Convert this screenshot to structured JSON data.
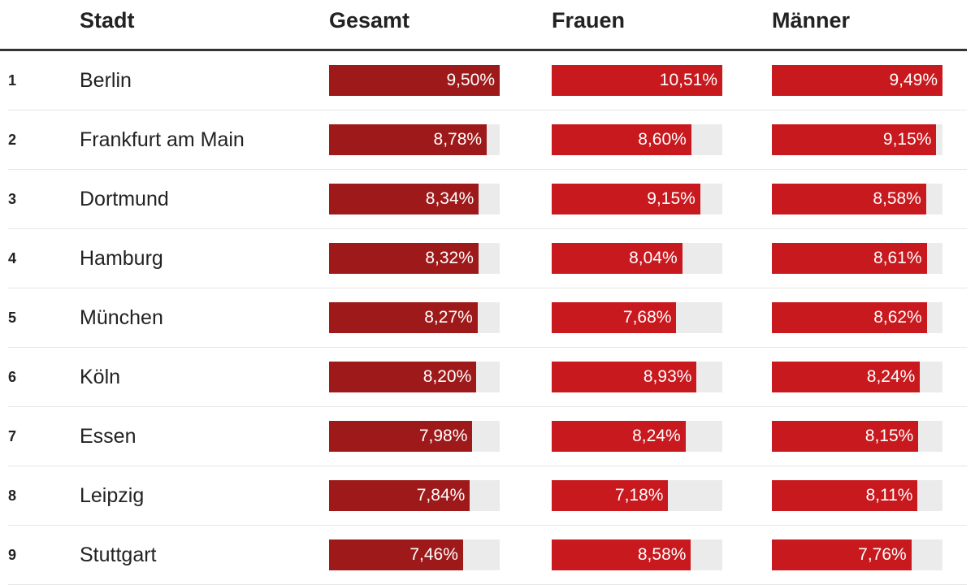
{
  "columns": {
    "stadt": "Stadt",
    "gesamt": "Gesamt",
    "frauen": "Frauen",
    "maenner": "Männer"
  },
  "colors": {
    "gesamt": "#9e1a1a",
    "frauen": "#c8191e",
    "maenner": "#c8191e",
    "track": "#ebebeb"
  },
  "chart_data": {
    "type": "table",
    "columns": [
      "Stadt",
      "Gesamt",
      "Frauen",
      "Männer"
    ],
    "rows": [
      {
        "rank": "1",
        "city": "Berlin",
        "gesamt": 9.5,
        "frauen": 10.51,
        "maenner": 9.49,
        "gesamt_label": "9,50%",
        "frauen_label": "10,51%",
        "maenner_label": "9,49%"
      },
      {
        "rank": "2",
        "city": "Frankfurt am Main",
        "gesamt": 8.78,
        "frauen": 8.6,
        "maenner": 9.15,
        "gesamt_label": "8,78%",
        "frauen_label": "8,60%",
        "maenner_label": "9,15%"
      },
      {
        "rank": "3",
        "city": "Dortmund",
        "gesamt": 8.34,
        "frauen": 9.15,
        "maenner": 8.58,
        "gesamt_label": "8,34%",
        "frauen_label": "9,15%",
        "maenner_label": "8,58%"
      },
      {
        "rank": "4",
        "city": "Hamburg",
        "gesamt": 8.32,
        "frauen": 8.04,
        "maenner": 8.61,
        "gesamt_label": "8,32%",
        "frauen_label": "8,04%",
        "maenner_label": "8,61%"
      },
      {
        "rank": "5",
        "city": "München",
        "gesamt": 8.27,
        "frauen": 7.68,
        "maenner": 8.62,
        "gesamt_label": "8,27%",
        "frauen_label": "7,68%",
        "maenner_label": "8,62%"
      },
      {
        "rank": "6",
        "city": "Köln",
        "gesamt": 8.2,
        "frauen": 8.93,
        "maenner": 8.24,
        "gesamt_label": "8,20%",
        "frauen_label": "8,93%",
        "maenner_label": "8,24%"
      },
      {
        "rank": "7",
        "city": "Essen",
        "gesamt": 7.98,
        "frauen": 8.24,
        "maenner": 8.15,
        "gesamt_label": "7,98%",
        "frauen_label": "8,24%",
        "maenner_label": "8,15%"
      },
      {
        "rank": "8",
        "city": "Leipzig",
        "gesamt": 7.84,
        "frauen": 7.18,
        "maenner": 8.11,
        "gesamt_label": "7,84%",
        "frauen_label": "7,18%",
        "maenner_label": "8,11%"
      },
      {
        "rank": "9",
        "city": "Stuttgart",
        "gesamt": 7.46,
        "frauen": 8.58,
        "maenner": 7.76,
        "gesamt_label": "7,46%",
        "frauen_label": "8,58%",
        "maenner_label": "7,76%"
      }
    ]
  }
}
